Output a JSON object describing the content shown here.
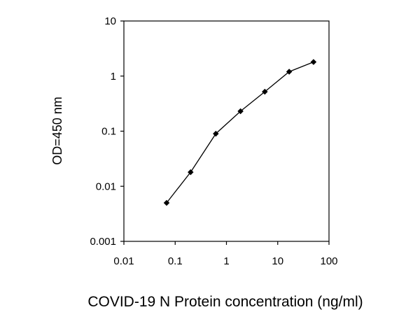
{
  "chart_data": {
    "type": "line",
    "title": "",
    "xlabel": "COVID-19 N Protein concentration (ng/ml)",
    "ylabel": "OD=450 nm",
    "x_scale": "log",
    "y_scale": "log",
    "xlim": [
      0.01,
      100
    ],
    "ylim": [
      0.001,
      10
    ],
    "x_ticks": [
      "0.01",
      "0.1",
      "1",
      "10",
      "100"
    ],
    "y_ticks": [
      "0.001",
      "0.01",
      "0.1",
      "1",
      "10"
    ],
    "grid": false,
    "legend": "none",
    "series": [
      {
        "x": [
          0.068,
          0.2,
          0.62,
          1.88,
          5.6,
          16.7,
          50
        ],
        "y": [
          0.005,
          0.018,
          0.09,
          0.23,
          0.52,
          1.2,
          1.8
        ]
      }
    ]
  },
  "colors": {
    "line": "#000000",
    "marker": "#000000",
    "axis": "#000000"
  }
}
